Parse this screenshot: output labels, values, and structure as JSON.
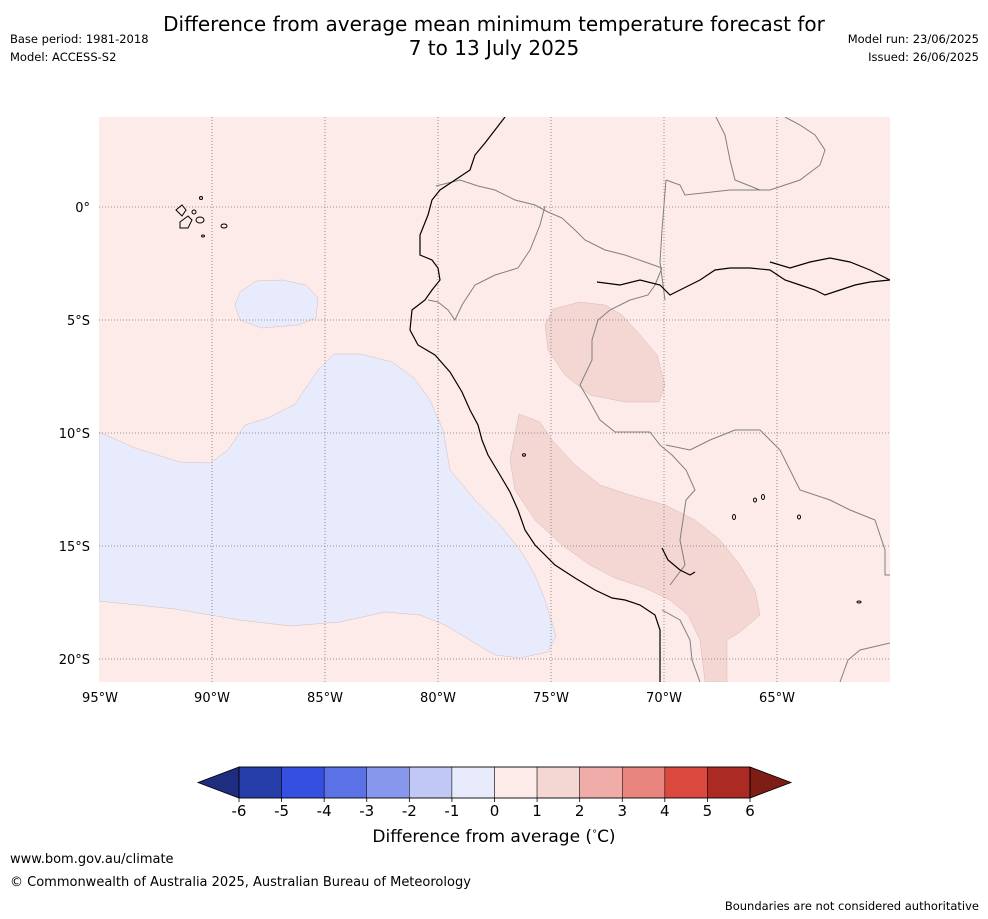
{
  "header": {
    "title_line1": "Difference from average mean minimum temperature forecast for",
    "title_line2": "7 to 13 July 2025",
    "base_period": "Base period: 1981-2018",
    "model": "Model: ACCESS-S2",
    "model_run": "Model run: 23/06/2025",
    "issued": "Issued: 26/06/2025"
  },
  "map": {
    "latitude_labels": [
      "0°",
      "5°S",
      "10°S",
      "15°S",
      "20°S"
    ],
    "longitude_labels": [
      "95°W",
      "90°W",
      "85°W",
      "80°W",
      "75°W",
      "70°W",
      "65°W"
    ],
    "background_color": "#fcebe9",
    "colors": {
      "neg1_0": "#e8ebfb",
      "pos1_2": "#f4d6d2",
      "coast": "#000000",
      "border": "#808080",
      "grid": "#777777"
    }
  },
  "colorbar": {
    "ticks": [
      "-6",
      "-5",
      "-4",
      "-3",
      "-2",
      "-1",
      "0",
      "1",
      "2",
      "3",
      "4",
      "5",
      "6"
    ],
    "colors": [
      "#1f2d81",
      "#263ea9",
      "#3550e0",
      "#5b72e6",
      "#8797ec",
      "#c1c8f5",
      "#e8ebfb",
      "#fcebe9",
      "#f4d6d2",
      "#efaca8",
      "#e7857e",
      "#db493e",
      "#ab2a24",
      "#7d1d16"
    ],
    "label": "Difference from average (",
    "label_unit": "°",
    "label_end": "C)"
  },
  "footer": {
    "url": "www.bom.gov.au/climate",
    "copyright": "© Commonwealth of Australia 2025, Australian Bureau of Meteorology",
    "note": "Boundaries are not considered authoritative"
  }
}
